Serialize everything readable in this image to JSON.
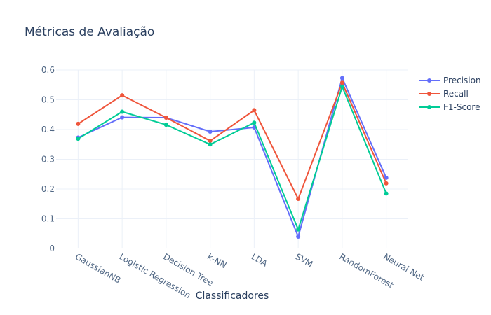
{
  "chart_data": {
    "type": "line",
    "title": "Métricas de Avaliação",
    "xlabel": "Classificadores",
    "ylabel": "",
    "categories": [
      "GaussianNB",
      "Logistic Regression",
      "Decision Tree",
      "k-NN",
      "LDA",
      "SVM",
      "RandomForest",
      "Neural Net"
    ],
    "ylim": [
      0,
      0.6
    ],
    "yticks": [
      0,
      0.1,
      0.2,
      0.3,
      0.4,
      0.5,
      0.6
    ],
    "ytick_labels": [
      "0",
      "0.1",
      "0.2",
      "0.3",
      "0.4",
      "0.5",
      "0.6"
    ],
    "grid": true,
    "legend_position": "top-right",
    "series": [
      {
        "name": "Precision",
        "color": "#636efa",
        "values": [
          0.373,
          0.441,
          0.44,
          0.393,
          0.407,
          0.04,
          0.573,
          0.238
        ]
      },
      {
        "name": "Recall",
        "color": "#ef553b",
        "values": [
          0.419,
          0.515,
          0.44,
          0.362,
          0.465,
          0.167,
          0.557,
          0.219
        ]
      },
      {
        "name": "F1-Score",
        "color": "#00cc96",
        "values": [
          0.369,
          0.46,
          0.416,
          0.35,
          0.423,
          0.064,
          0.544,
          0.185
        ]
      }
    ]
  }
}
